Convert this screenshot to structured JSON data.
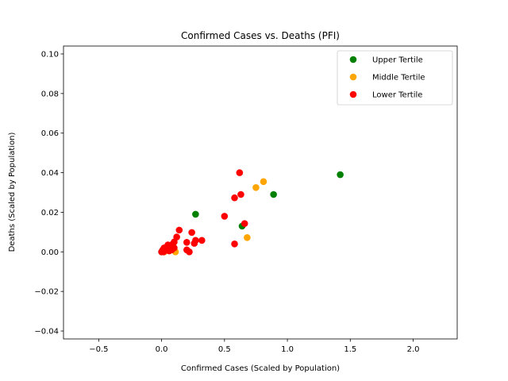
{
  "chart_data": {
    "type": "scatter",
    "title": "Confirmed Cases vs. Deaths (PFI)",
    "xlabel": "Confirmed Cases (Scaled by Population)",
    "ylabel": "Deaths (Scaled by Population)",
    "xlim": [
      -0.78,
      2.35
    ],
    "ylim": [
      -0.044,
      0.104
    ],
    "x_ticks": [
      -0.5,
      0.0,
      0.5,
      1.0,
      1.5,
      2.0
    ],
    "x_tick_labels": [
      "−0.5",
      "0.0",
      "0.5",
      "1.0",
      "1.5",
      "2.0"
    ],
    "y_ticks": [
      -0.04,
      -0.02,
      0.0,
      0.02,
      0.04,
      0.06,
      0.08,
      0.1
    ],
    "y_tick_labels": [
      "−0.04",
      "−0.02",
      "0.00",
      "0.02",
      "0.04",
      "0.06",
      "0.08",
      "0.10"
    ],
    "grid": false,
    "legend_position": "top-right",
    "series": [
      {
        "name": "Upper Tertile",
        "color": "#008000",
        "points": [
          [
            1.42,
            0.039
          ],
          [
            0.89,
            0.029
          ],
          [
            0.27,
            0.019
          ],
          [
            0.64,
            0.013
          ],
          [
            0.0,
            0.0
          ],
          [
            0.01,
            0.001
          ],
          [
            0.02,
            0.0005
          ]
        ]
      },
      {
        "name": "Middle Tertile",
        "color": "#ffa500",
        "points": [
          [
            0.81,
            0.0355
          ],
          [
            0.75,
            0.0325
          ],
          [
            0.68,
            0.0072
          ],
          [
            0.11,
            0.0
          ],
          [
            0.07,
            0.002
          ],
          [
            0.05,
            0.001
          ],
          [
            0.03,
            0.0005
          ],
          [
            0.02,
            0.0
          ]
        ]
      },
      {
        "name": "Lower Tertile",
        "color": "#ff0000",
        "points": [
          [
            0.62,
            0.04
          ],
          [
            0.63,
            0.029
          ],
          [
            0.58,
            0.0273
          ],
          [
            0.66,
            0.0143
          ],
          [
            0.5,
            0.018
          ],
          [
            0.58,
            0.004
          ],
          [
            0.14,
            0.011
          ],
          [
            0.24,
            0.0098
          ],
          [
            0.12,
            0.0075
          ],
          [
            0.27,
            0.0058
          ],
          [
            0.32,
            0.0058
          ],
          [
            0.2,
            0.0048
          ],
          [
            0.26,
            0.0043
          ],
          [
            0.2,
            0.001
          ],
          [
            0.22,
            0.0
          ],
          [
            0.1,
            0.005
          ],
          [
            0.09,
            0.004
          ],
          [
            0.08,
            0.0035
          ],
          [
            0.05,
            0.0035
          ],
          [
            0.07,
            0.0025
          ],
          [
            0.1,
            0.002
          ],
          [
            0.06,
            0.0015
          ],
          [
            0.04,
            0.001
          ],
          [
            0.03,
            0.0008
          ],
          [
            0.02,
            0.0005
          ],
          [
            0.01,
            0.0003
          ],
          [
            0.0,
            0.0
          ],
          [
            0.005,
            0.0002
          ],
          [
            0.015,
            0.0
          ],
          [
            0.04,
            0.0015
          ],
          [
            0.06,
            0.0005
          ],
          [
            0.08,
            0.001
          ],
          [
            0.02,
            0.002
          ],
          [
            0.03,
            0.0012
          ],
          [
            0.01,
            0.001
          ]
        ]
      }
    ]
  }
}
